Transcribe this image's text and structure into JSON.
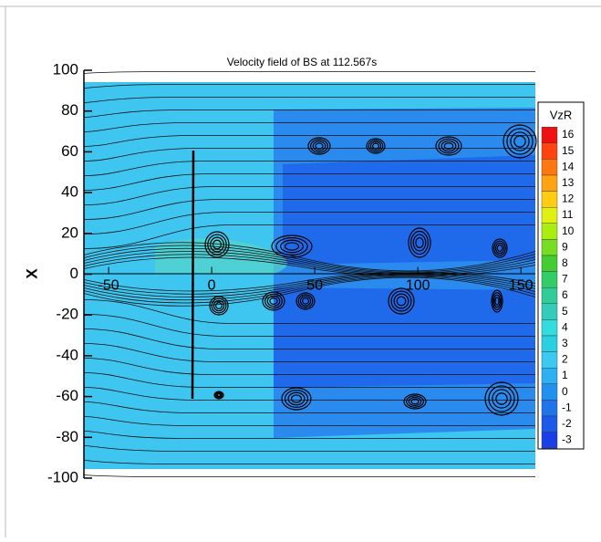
{
  "chart_data": {
    "type": "contour",
    "title": "Velocity field of BS at 112.567s",
    "ylabel": "X",
    "xlim": [
      -62,
      157
    ],
    "xticks": [
      -50,
      0,
      50,
      100,
      150
    ],
    "ylim": [
      -100,
      100
    ],
    "yticks": [
      -100,
      -80,
      -60,
      -40,
      -20,
      0,
      20,
      40,
      60,
      80,
      100
    ],
    "colorbar": {
      "title": "VzR",
      "levels": [
        16,
        15,
        14,
        13,
        12,
        11,
        10,
        9,
        8,
        7,
        6,
        5,
        4,
        3,
        2,
        1,
        0,
        -1,
        -2,
        -3
      ],
      "colors": [
        "#ee1111",
        "#ff4411",
        "#ff7711",
        "#ffa311",
        "#ffcc11",
        "#e0f011",
        "#aaee11",
        "#77dd22",
        "#44cc33",
        "#33cc66",
        "#33cc99",
        "#33ccbb",
        "#33dddd",
        "#2ad0e0",
        "#3cc8f0",
        "#2fb0f0",
        "#2290ee",
        "#1f74ea",
        "#1d5ae8",
        "#1a3fe6"
      ]
    }
  }
}
